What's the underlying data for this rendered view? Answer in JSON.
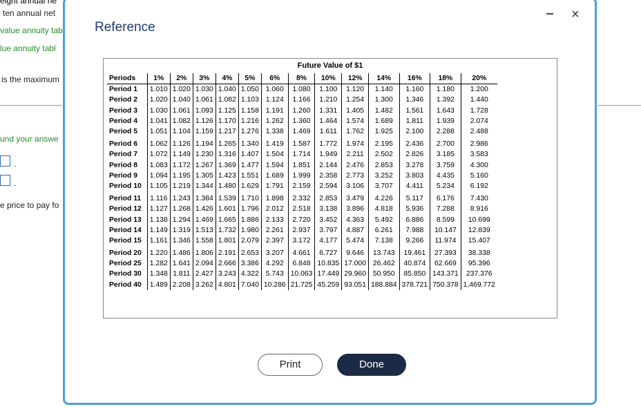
{
  "background": {
    "lines": [
      {
        "text": "eight annual ne",
        "color": "#222"
      },
      {
        "text": "ten annual net",
        "color": "#222"
      },
      {
        "text": "value annuity tab",
        "color": "#2a8a2a"
      },
      {
        "text": "lue annuity tabl",
        "color": "#2a8a2a"
      },
      {
        "text": "is the maximum",
        "color": "#222"
      },
      {
        "text": "und your answe",
        "color": "#2a8a2a"
      },
      {
        "text": "e price to pay fo",
        "color": "#222"
      }
    ],
    "dot": "."
  },
  "modal": {
    "title": "Reference",
    "minimize_icon": "minus-icon",
    "close_label": "×",
    "table_title": "Future Value of $1",
    "columns": [
      "Periods",
      "1%",
      "2%",
      "3%",
      "4%",
      "5%",
      "6%",
      "8%",
      "10%",
      "12%",
      "14%",
      "16%",
      "18%",
      "20%"
    ],
    "groups": [
      [
        {
          "period": "Period 1",
          "values": [
            "1.010",
            "1.020",
            "1.030",
            "1.040",
            "1.050",
            "1.060",
            "1.080",
            "1.100",
            "1.120",
            "1.140",
            "1.160",
            "1.180",
            "1.200"
          ]
        },
        {
          "period": "Period 2",
          "values": [
            "1.020",
            "1.040",
            "1.061",
            "1.082",
            "1.103",
            "1.124",
            "1.166",
            "1.210",
            "1.254",
            "1.300",
            "1.346",
            "1.392",
            "1.440"
          ]
        },
        {
          "period": "Period 3",
          "values": [
            "1.030",
            "1.061",
            "1.093",
            "1.125",
            "1.158",
            "1.191",
            "1.260",
            "1.331",
            "1.405",
            "1.482",
            "1.561",
            "1.643",
            "1.728"
          ]
        },
        {
          "period": "Period 4",
          "values": [
            "1.041",
            "1.082",
            "1.126",
            "1.170",
            "1.216",
            "1.262",
            "1.360",
            "1.464",
            "1.574",
            "1.689",
            "1.811",
            "1.939",
            "2.074"
          ]
        },
        {
          "period": "Period 5",
          "values": [
            "1.051",
            "1.104",
            "1.159",
            "1.217",
            "1.276",
            "1.338",
            "1.469",
            "1.611",
            "1.762",
            "1.925",
            "2.100",
            "2.288",
            "2.488"
          ]
        }
      ],
      [
        {
          "period": "Period 6",
          "values": [
            "1.062",
            "1.126",
            "1.194",
            "1.265",
            "1.340",
            "1.419",
            "1.587",
            "1.772",
            "1.974",
            "2.195",
            "2.436",
            "2.700",
            "2.986"
          ]
        },
        {
          "period": "Period 7",
          "values": [
            "1.072",
            "1.149",
            "1.230",
            "1.316",
            "1.407",
            "1.504",
            "1.714",
            "1.949",
            "2.211",
            "2.502",
            "2.826",
            "3.185",
            "3.583"
          ]
        },
        {
          "period": "Period 8",
          "values": [
            "1.083",
            "1.172",
            "1.267",
            "1.369",
            "1.477",
            "1.594",
            "1.851",
            "2.144",
            "2.476",
            "2.853",
            "3.278",
            "3.759",
            "4.300"
          ]
        },
        {
          "period": "Period 9",
          "values": [
            "1.094",
            "1.195",
            "1.305",
            "1.423",
            "1.551",
            "1.689",
            "1.999",
            "2.358",
            "2.773",
            "3.252",
            "3.803",
            "4.435",
            "5.160"
          ]
        },
        {
          "period": "Period 10",
          "values": [
            "1.105",
            "1.219",
            "1.344",
            "1.480",
            "1.629",
            "1.791",
            "2.159",
            "2.594",
            "3.106",
            "3.707",
            "4.411",
            "5.234",
            "6.192"
          ]
        }
      ],
      [
        {
          "period": "Period 11",
          "values": [
            "1.116",
            "1.243",
            "1.384",
            "1.539",
            "1.710",
            "1.898",
            "2.332",
            "2.853",
            "3.479",
            "4.226",
            "5.117",
            "6.176",
            "7.430"
          ]
        },
        {
          "period": "Period 12",
          "values": [
            "1.127",
            "1.268",
            "1.426",
            "1.601",
            "1.796",
            "2.012",
            "2.518",
            "3.138",
            "3.896",
            "4.818",
            "5.936",
            "7.288",
            "8.916"
          ]
        },
        {
          "period": "Period 13",
          "values": [
            "1.138",
            "1.294",
            "1.469",
            "1.665",
            "1.886",
            "2.133",
            "2.720",
            "3.452",
            "4.363",
            "5.492",
            "6.886",
            "8.599",
            "10.699"
          ]
        },
        {
          "period": "Period 14",
          "values": [
            "1.149",
            "1.319",
            "1.513",
            "1.732",
            "1.980",
            "2.261",
            "2.937",
            "3.797",
            "4.887",
            "6.261",
            "7.988",
            "10.147",
            "12.839"
          ]
        },
        {
          "period": "Period 15",
          "values": [
            "1.161",
            "1.346",
            "1.558",
            "1.801",
            "2.079",
            "2.397",
            "3.172",
            "4.177",
            "5.474",
            "7.138",
            "9.266",
            "11.974",
            "15.407"
          ]
        }
      ],
      [
        {
          "period": "Period 20",
          "values": [
            "1.220",
            "1.486",
            "1.806",
            "2.191",
            "2.653",
            "3.207",
            "4.661",
            "6.727",
            "9.646",
            "13.743",
            "19.461",
            "27.393",
            "38.338"
          ]
        },
        {
          "period": "Period 25",
          "values": [
            "1.282",
            "1.641",
            "2.094",
            "2.666",
            "3.386",
            "4.292",
            "6.848",
            "10.835",
            "17.000",
            "26.462",
            "40.874",
            "62.669",
            "95.396"
          ]
        },
        {
          "period": "Period 30",
          "values": [
            "1.348",
            "1.811",
            "2.427",
            "3.243",
            "4.322",
            "5.743",
            "10.063",
            "17.449",
            "29.960",
            "50.950",
            "85.850",
            "143.371",
            "237.376"
          ]
        },
        {
          "period": "Period 40",
          "values": [
            "1.489",
            "2.208",
            "3.262",
            "4.801",
            "7.040",
            "10.286",
            "21.725",
            "45.259",
            "93.051",
            "188.884",
            "378.721",
            "750.378",
            "1,469.772"
          ]
        }
      ]
    ],
    "print_label": "Print",
    "done_label": "Done"
  }
}
